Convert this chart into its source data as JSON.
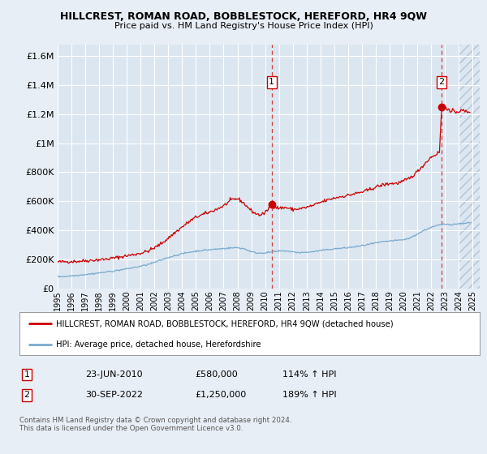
{
  "title": "HILLCREST, ROMAN ROAD, BOBBLESTOCK, HEREFORD, HR4 9QW",
  "subtitle": "Price paid vs. HM Land Registry's House Price Index (HPI)",
  "bg_color": "#e8eef5",
  "plot_bg_color": "#dce6f0",
  "grid_color": "#ffffff",
  "ytick_values": [
    0,
    200000,
    400000,
    600000,
    800000,
    1000000,
    1200000,
    1400000,
    1600000
  ],
  "ylim": [
    0,
    1680000
  ],
  "xlim_start": 1995,
  "xlim_end": 2025.5,
  "xtick_years": [
    1995,
    1996,
    1997,
    1998,
    1999,
    2000,
    2001,
    2002,
    2003,
    2004,
    2005,
    2006,
    2007,
    2008,
    2009,
    2010,
    2011,
    2012,
    2013,
    2014,
    2015,
    2016,
    2017,
    2018,
    2019,
    2020,
    2021,
    2022,
    2023,
    2024,
    2025
  ],
  "sale1_x": 2010.48,
  "sale1_y": 580000,
  "sale1_label": "1",
  "sale2_x": 2022.75,
  "sale2_y": 1250000,
  "sale2_label": "2",
  "annotation1_date": "23-JUN-2010",
  "annotation1_price": "£580,000",
  "annotation1_hpi": "114% ↑ HPI",
  "annotation2_date": "30-SEP-2022",
  "annotation2_price": "£1,250,000",
  "annotation2_hpi": "189% ↑ HPI",
  "legend_line1": "HILLCREST, ROMAN ROAD, BOBBLESTOCK, HEREFORD, HR4 9QW (detached house)",
  "legend_line2": "HPI: Average price, detached house, Herefordshire",
  "footer": "Contains HM Land Registry data © Crown copyright and database right 2024.\nThis data is licensed under the Open Government Licence v3.0.",
  "red_color": "#cc0000",
  "blue_color": "#7aaace",
  "dashed_red": "#cc4444",
  "hatch_color": "#c8d8e8"
}
